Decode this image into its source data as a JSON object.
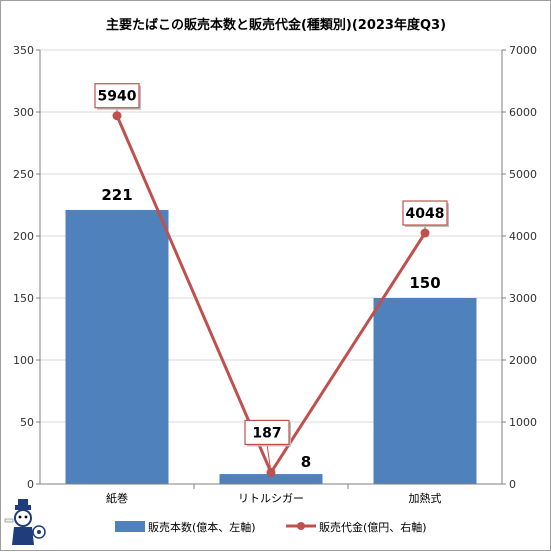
{
  "chart_data": {
    "type": "bar",
    "title": "主要たばこの販売本数と販売代金(種類別)(2023年度Q3)",
    "categories": [
      "紙巻",
      "リトルシガー",
      "加熱式"
    ],
    "series": [
      {
        "name": "販売本数(億本、左軸)",
        "type": "bar",
        "axis": "left",
        "color": "#4f81bd",
        "values": [
          221,
          8,
          150
        ],
        "labels": [
          "221",
          "8",
          "150"
        ]
      },
      {
        "name": "販売代金(億円、右軸)",
        "type": "line",
        "axis": "right",
        "color": "#c0504d",
        "values": [
          5940,
          187,
          4048
        ],
        "labels": [
          "5940",
          "187",
          "4048"
        ]
      }
    ],
    "y_left": {
      "min": 0,
      "max": 350,
      "ticks": [
        "0",
        "50",
        "100",
        "150",
        "200",
        "250",
        "300",
        "350"
      ]
    },
    "y_right": {
      "min": 0,
      "max": 7000,
      "ticks": [
        "0",
        "1000",
        "2000",
        "3000",
        "4000",
        "5000",
        "6000",
        "7000"
      ]
    },
    "grid": true,
    "legend_position": "bottom"
  }
}
